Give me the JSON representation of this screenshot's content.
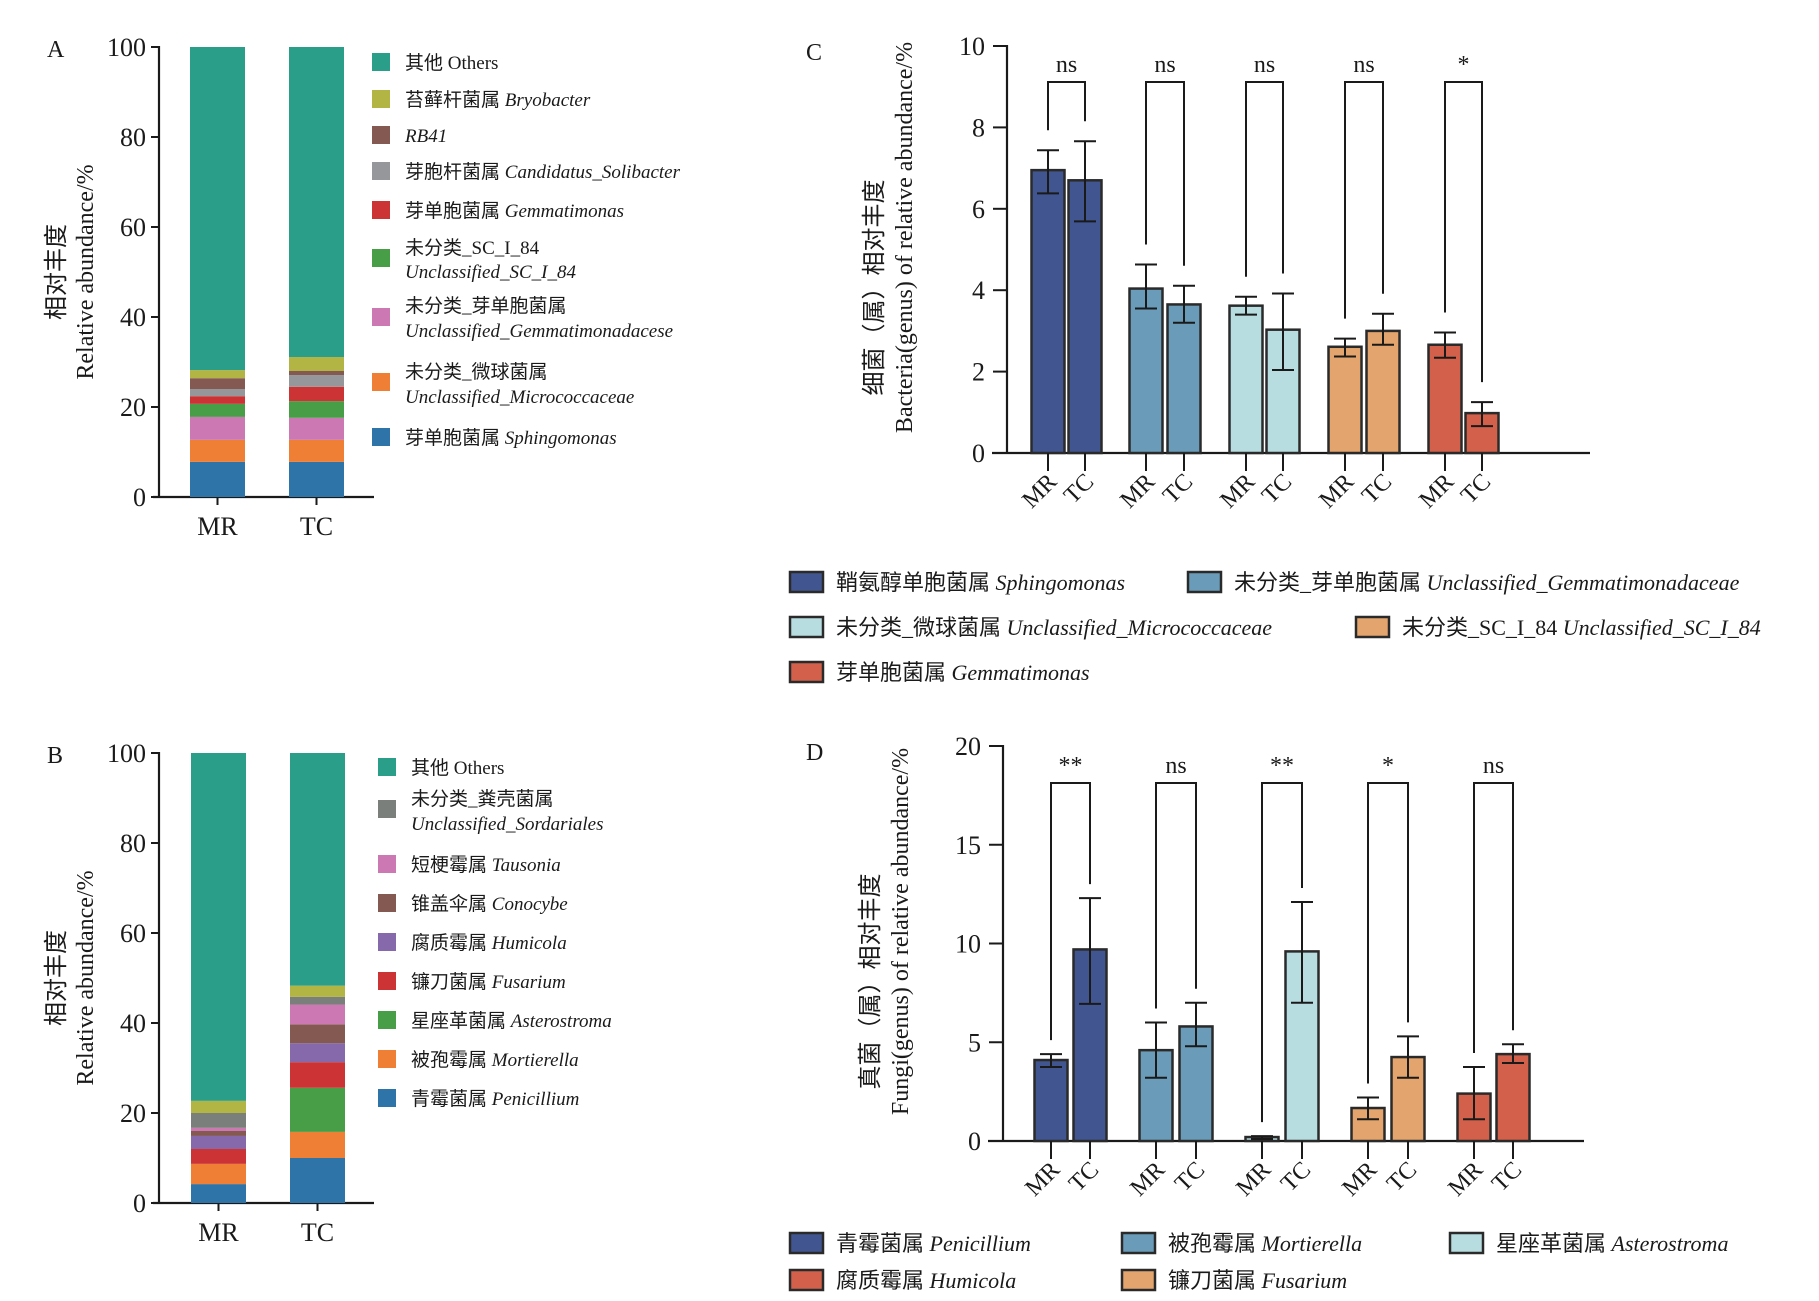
{
  "figure": {
    "panels": [
      "A",
      "B",
      "C",
      "D"
    ]
  },
  "chart_data": [
    {
      "id": "A",
      "type": "bar",
      "stacked": true,
      "panel_label": "A",
      "ylabel_cn": "相对丰度",
      "ylabel_en": "Relative  abundance/%",
      "ylim": [
        0,
        100
      ],
      "yticks": [
        "0",
        "20",
        "40",
        "60",
        "80",
        "100"
      ],
      "categories": [
        "MR",
        "TC"
      ],
      "series": [
        {
          "name_cn": "芽单胞菌属",
          "name_en": "Sphingomonas",
          "color": "#2f74a8",
          "values": [
            7.8,
            7.8
          ]
        },
        {
          "name_cn": "未分类_微球菌属",
          "name_en": "Unclassified_Micrococcaceae",
          "color": "#f07f36",
          "values": [
            4.9,
            4.9
          ]
        },
        {
          "name_cn": "未分类_芽单胞菌属",
          "name_en": "Unclassified_Gemmatimonadacese",
          "color": "#cb78b3",
          "values": [
            5.1,
            4.9
          ]
        },
        {
          "name_cn": "未分类_SC_I_84",
          "name_en": "Unclassified_SC_I_84",
          "color": "#479e47",
          "values": [
            2.9,
            3.7
          ]
        },
        {
          "name_cn": "芽单胞菌属",
          "name_en": "Gemmatimonas",
          "color": "#cc3334",
          "values": [
            1.7,
            3.2
          ]
        },
        {
          "name_cn": "芽胞杆菌属",
          "name_en": "Candidatus_Solibacter",
          "color": "#96979b",
          "values": [
            1.6,
            2.6
          ]
        },
        {
          "name_cn": "",
          "name_en": "RB41",
          "color": "#845951",
          "values": [
            2.4,
            0.9
          ]
        },
        {
          "name_cn": "苔藓杆菌属",
          "name_en": "Bryobacter",
          "color": "#b2b444",
          "values": [
            1.8,
            3.1
          ]
        },
        {
          "name_cn": "其他",
          "name_en": "Others",
          "color": "#2a9e88",
          "values": [
            71.8,
            68.9
          ],
          "en_upright": true
        }
      ]
    },
    {
      "id": "B",
      "type": "bar",
      "stacked": true,
      "panel_label": "B",
      "ylabel_cn": "相对丰度",
      "ylabel_en": "Relative  abundance/%",
      "ylim": [
        0,
        100
      ],
      "yticks": [
        "0",
        "20",
        "40",
        "60",
        "80",
        "100"
      ],
      "categories": [
        "MR",
        "TC"
      ],
      "series": [
        {
          "name_cn": "青霉菌属",
          "name_en": "Penicillium",
          "color": "#2f74a8",
          "values": [
            4.2,
            10.0
          ]
        },
        {
          "name_cn": "被孢霉属",
          "name_en": "Mortierella",
          "color": "#f07f36",
          "values": [
            4.5,
            5.8
          ]
        },
        {
          "name_cn": "星座革菌属",
          "name_en": "Asterostroma",
          "color": "#479e47",
          "values": [
            0.0,
            9.8
          ]
        },
        {
          "name_cn": "镰刀菌属",
          "name_en": "Fusarium",
          "color": "#cc3334",
          "values": [
            3.3,
            5.7
          ]
        },
        {
          "name_cn": "腐质霉属",
          "name_en": "Humicola",
          "color": "#8569ab",
          "values": [
            2.9,
            4.2
          ]
        },
        {
          "name_cn": "锥盖伞属",
          "name_en": "Conocybe",
          "color": "#845951",
          "values": [
            1.1,
            4.2
          ]
        },
        {
          "name_cn": "短梗霉属",
          "name_en": "Tausonia",
          "color": "#cb78b3",
          "values": [
            0.7,
            4.4
          ]
        },
        {
          "name_cn": "未分类_粪壳菌属",
          "name_en": "Unclassified_Sordariales",
          "color": "#7b7f7b",
          "values": [
            3.3,
            1.7
          ]
        },
        {
          "name_cn": "",
          "name_en": "",
          "color": "#b2b444",
          "values": [
            2.7,
            2.5
          ],
          "in_legend": false
        },
        {
          "name_cn": "其他",
          "name_en": "Others",
          "color": "#2a9e88",
          "values": [
            77.3,
            51.7
          ],
          "en_upright": true
        }
      ]
    },
    {
      "id": "C",
      "type": "bar",
      "grouped": true,
      "panel_label": "C",
      "ylabel_cn": "细菌（属）相对丰度",
      "ylabel_en": "Bacteria(genus) of relative abundance/%",
      "ylim": [
        0,
        10
      ],
      "yticks": [
        "0",
        "2",
        "4",
        "6",
        "8",
        "10"
      ],
      "categories": [
        "MR",
        "TC"
      ],
      "groups": [
        {
          "name_cn": "鞘氨醇单胞菌属",
          "name_en": "Sphingomonas",
          "color": "#415690",
          "values": [
            6.95,
            6.7
          ],
          "err_low": [
            6.38,
            5.69
          ],
          "err_high": [
            7.44,
            7.66
          ],
          "significance": "ns"
        },
        {
          "name_cn": "未分类_芽单胞菌属",
          "name_en": "Unclassified_Gemmatimonadaceae",
          "color": "#6a9cba",
          "values": [
            4.04,
            3.65
          ],
          "err_low": [
            3.55,
            3.2
          ],
          "err_high": [
            4.63,
            4.11
          ],
          "significance": "ns"
        },
        {
          "name_cn": "未分类_微球菌属",
          "name_en": "Unclassified_Micrococcaceae",
          "color": "#b7dde0",
          "values": [
            3.62,
            3.03
          ],
          "err_low": [
            3.4,
            2.04
          ],
          "err_high": [
            3.84,
            3.92
          ],
          "significance": "ns"
        },
        {
          "name_cn": "未分类_SC_I_84",
          "name_en": "Unclassified_SC_I_84",
          "color": "#e3a56d",
          "values": [
            2.61,
            3.0
          ],
          "err_low": [
            2.37,
            2.66
          ],
          "err_high": [
            2.81,
            3.42
          ],
          "significance": "ns"
        },
        {
          "name_cn": "芽单胞菌属",
          "name_en": "Gemmatimonas",
          "color": "#d2604a",
          "values": [
            2.66,
            0.98
          ],
          "err_low": [
            2.34,
            0.66
          ],
          "err_high": [
            2.96,
            1.25
          ],
          "significance": "*"
        }
      ]
    },
    {
      "id": "D",
      "type": "bar",
      "grouped": true,
      "panel_label": "D",
      "ylabel_cn": "真菌（属）相对丰度",
      "ylabel_en": "Fungi(genus) of relative abundance/%",
      "ylim": [
        0,
        20
      ],
      "yticks": [
        "0",
        "5",
        "10",
        "15",
        "20"
      ],
      "categories": [
        "MR",
        "TC"
      ],
      "groups": [
        {
          "name_cn": "青霉菌属",
          "name_en": "Penicillium",
          "color": "#415690",
          "values": [
            4.1,
            9.7
          ],
          "err_low": [
            3.75,
            6.94
          ],
          "err_high": [
            4.4,
            12.3
          ],
          "significance": "**"
        },
        {
          "name_cn": "被孢霉属",
          "name_en": "Mortierella",
          "color": "#6a9cba",
          "values": [
            4.6,
            5.8
          ],
          "err_low": [
            3.2,
            4.8
          ],
          "err_high": [
            6.0,
            7.0
          ],
          "significance": "ns"
        },
        {
          "name_cn": "星座革菌属",
          "name_en": "Asterostroma",
          "color": "#b7dde0",
          "values": [
            0.2,
            9.6
          ],
          "err_low": [
            0.1,
            7.0
          ],
          "err_high": [
            0.25,
            12.1
          ],
          "significance": "**"
        },
        {
          "name_cn": "镰刀菌属",
          "name_en": "Fusarium",
          "color": "#e3a56d",
          "values": [
            1.67,
            4.25
          ],
          "err_low": [
            1.1,
            3.2
          ],
          "err_high": [
            2.2,
            5.3
          ],
          "significance": "*"
        },
        {
          "name_cn": "腐质霉属",
          "name_en": "Humicola",
          "color": "#d2604a",
          "values": [
            2.4,
            4.4
          ],
          "err_low": [
            1.1,
            3.95
          ],
          "err_high": [
            3.75,
            4.9
          ],
          "significance": "ns"
        }
      ],
      "legend_order": [
        0,
        1,
        2,
        4,
        3
      ]
    }
  ]
}
